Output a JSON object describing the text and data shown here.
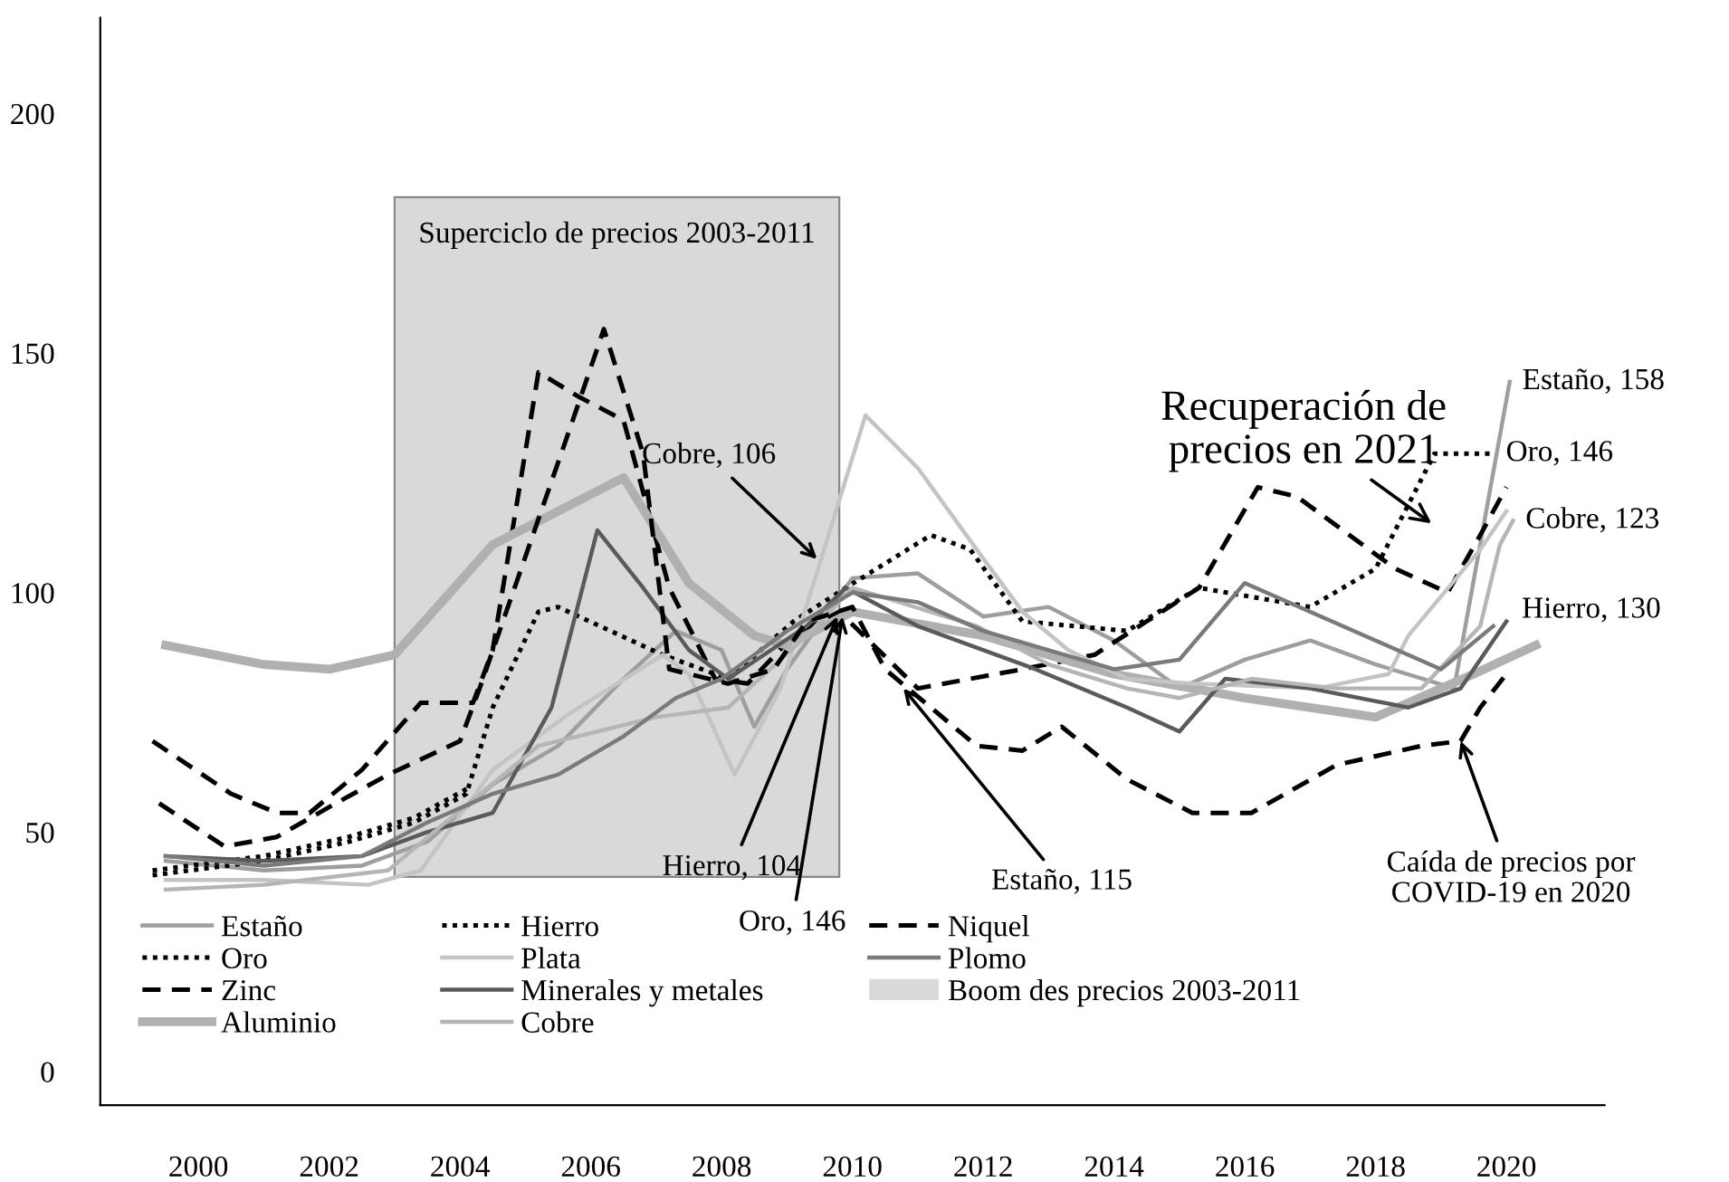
{
  "chart_data": {
    "type": "line",
    "xlim": [
      1998.5,
      2021.5
    ],
    "xticks": [
      2000,
      2002,
      2004,
      2006,
      2008,
      2010,
      2012,
      2014,
      2016,
      2018,
      2020
    ],
    "ylim": [
      -7,
      220
    ],
    "yticks": [
      0,
      50,
      100,
      150,
      200
    ],
    "grid": false,
    "legend": "bottom left",
    "series": [
      {
        "name": "Estaño",
        "color": "#9e9e9e",
        "line_style": "solid",
        "x": [
          1999.5,
          2001,
          2002.5,
          2003.5,
          2004.5,
          2005.5,
          2006.5,
          2007.3,
          2008,
          2008.5,
          2009,
          2010,
          2011,
          2012,
          2013,
          2014,
          2015,
          2016,
          2017,
          2018,
          2019.2,
          2020.05
        ],
        "values": [
          44,
          42,
          43,
          48,
          60,
          68,
          82,
          92,
          88,
          72,
          84,
          103,
          104,
          95,
          97,
          90,
          80,
          86,
          90,
          85,
          80,
          144
        ]
      },
      {
        "name": "Oro",
        "color": "#000000",
        "line_style": "dotted",
        "x": [
          1999.3,
          2001,
          2002.3,
          2003.3,
          2004.1,
          2004.5,
          2005.2,
          2005.5,
          2007.1,
          2008.1,
          2009.1,
          2009.9,
          2011.2,
          2011.8,
          2012.6,
          2014.2,
          2015.3,
          2017,
          2018,
          2018.9,
          2019.8
        ],
        "values": [
          41,
          44,
          48,
          52,
          58,
          76,
          96,
          97,
          87,
          82,
          94,
          101,
          112,
          109,
          94,
          92,
          101,
          97,
          105,
          129,
          129
        ]
      },
      {
        "name": "Zinc",
        "color": "#000000",
        "line_style": "dashed",
        "x": [
          1999.3,
          2000.5,
          2001.2,
          2001.7,
          2002.5,
          2003.4,
          2004.2,
          2004.5,
          2005.2,
          2005.8,
          2006.5,
          2007.2,
          2007.9,
          2008.4,
          2009.1,
          2009.8,
          2011,
          2012.6,
          2013.7,
          2015.3,
          2016.2,
          2016.8,
          2018.3,
          2019.1,
          2019.6,
          2020
        ],
        "values": [
          69,
          58,
          54,
          54,
          63,
          77,
          77,
          88,
          146,
          141,
          136,
          101,
          82,
          81,
          91,
          96,
          80,
          84,
          87,
          101,
          122,
          120,
          105,
          100,
          112,
          122
        ]
      },
      {
        "name": "Aluminio",
        "color": "#b0b0b0",
        "line_style": "solid",
        "x": [
          1999.5,
          2001,
          2002,
          2003,
          2004.5,
          2006.5,
          2007.5,
          2008.5,
          2009,
          2010,
          2012,
          2014,
          2016,
          2018,
          2019.5,
          2020.45
        ],
        "values": [
          89,
          85,
          84,
          87,
          110,
          124,
          102,
          91,
          89,
          96,
          91,
          83,
          78,
          74,
          83,
          89
        ]
      },
      {
        "name": "Hierro",
        "color": "#000000",
        "line_style": "dotted",
        "x": [
          1999.3,
          2001,
          2002.3,
          2003.3,
          2004.1
        ],
        "values": [
          42,
          45,
          49,
          53,
          59
        ]
      },
      {
        "name": "Plata",
        "color": "#c4c4c4",
        "line_style": "solid",
        "x": [
          1999.5,
          2001,
          2002.6,
          2003.4,
          2004.5,
          2005.7,
          2007.1,
          2007.5,
          2008.2,
          2008.9,
          2009.5,
          2010.2,
          2011,
          2011.9,
          2012.6,
          2013.3,
          2014.2,
          2015.2,
          2017.1,
          2018.2,
          2018.5,
          2019.6,
          2020
        ],
        "values": [
          40,
          40,
          39,
          42,
          63,
          75,
          87,
          83,
          62,
          80,
          106,
          137,
          126,
          109,
          96,
          88,
          82,
          81,
          80,
          83,
          91,
          109,
          117
        ]
      },
      {
        "name": "Minerales y metales",
        "color": "#5a5a5a",
        "line_style": "solid",
        "x": [
          1999.5,
          2001,
          2002.5,
          2003.5,
          2004.5,
          2005.4,
          2006.1,
          2006.8,
          2007.5,
          2008.1,
          2009.3,
          2009.9,
          2011,
          2012.8,
          2014.2,
          2015,
          2015.7,
          2017,
          2018.5,
          2019.3,
          2020
        ],
        "values": [
          45,
          44,
          45,
          50,
          54,
          76,
          113,
          101,
          88,
          82,
          93,
          101,
          93,
          84,
          76,
          71,
          82,
          80,
          76,
          80,
          94
        ]
      },
      {
        "name": "Cobre",
        "color": "#b5b5b5",
        "line_style": "solid",
        "x": [
          1999.5,
          2001,
          2002.9,
          2003.6,
          2005.2,
          2007,
          2008.1,
          2009.3,
          2010,
          2011.9,
          2013,
          2014.2,
          2015,
          2016.1,
          2017.4,
          2018.7,
          2019.6,
          2019.9,
          2020.1
        ],
        "values": [
          38,
          39,
          42,
          50,
          68,
          74,
          76,
          91,
          101,
          93,
          85,
          80,
          78,
          82,
          80,
          80,
          93,
          110,
          115
        ]
      },
      {
        "name": "Niquel",
        "color": "#000000",
        "line_style": "dashed",
        "x": [
          1999.4,
          2000.4,
          2001.2,
          2002.1,
          2002.9,
          2004,
          2004.3,
          2005.7,
          2006.2,
          2006.8,
          2007.2,
          2008.1,
          2008.8,
          2009.3,
          2010,
          2010.5,
          2011.9,
          2012.6,
          2013.2,
          2014.2,
          2015.2,
          2016.1,
          2017.4,
          2018.7,
          2019.3,
          2019.6,
          2020
        ],
        "values": [
          56,
          47,
          49,
          56,
          62,
          69,
          80,
          135,
          155,
          129,
          84,
          81,
          84,
          94,
          97,
          84,
          68,
          67,
          72,
          61,
          54,
          54,
          64,
          68,
          69,
          76,
          83
        ]
      },
      {
        "name": "Plomo",
        "color": "#7a7a7a",
        "line_style": "solid",
        "x": [
          1999.5,
          2001,
          2002.5,
          2003.5,
          2004.5,
          2005.5,
          2006.5,
          2007.3,
          2008,
          2009,
          2010,
          2011,
          2012,
          2013,
          2014,
          2015,
          2016,
          2017,
          2018,
          2019,
          2019.8
        ],
        "values": [
          45,
          43,
          45,
          52,
          58,
          62,
          70,
          78,
          82,
          92,
          100,
          98,
          92,
          88,
          84,
          86,
          102,
          96,
          90,
          84,
          93
        ]
      }
    ],
    "bands": [
      {
        "axis": "x",
        "from": 2003,
        "to": 2009.8,
        "label": "Boom des precios 2003-2011",
        "color": "#d9d9d9"
      }
    ],
    "annotations": [
      "Superciclo de precios 2003-2011",
      {
        "text": "Cobre, 106",
        "x": 2009.46,
        "y": 107
      },
      {
        "text": "Hierro, 104",
        "x": 2009.77,
        "y": 95
      },
      {
        "text": "Oro, 146",
        "x": 2009.85,
        "y": 95
      },
      {
        "text": "Estaño, 115",
        "x": 2010.78,
        "y": 80
      },
      "Recuperación de\nprecios en 2021",
      {
        "text": "Caída de precios por\nCOVID-19 en 2020",
        "x": 2019.3,
        "y": 69
      },
      {
        "text": "Estaño, 158",
        "x": 2020.05,
        "y": 144
      },
      {
        "text": "Oro, 146",
        "x": 2019.8,
        "y": 129
      },
      {
        "text": "Cobre, 123",
        "x": 2020.1,
        "y": 115
      },
      "Hierro, 130"
    ]
  }
}
